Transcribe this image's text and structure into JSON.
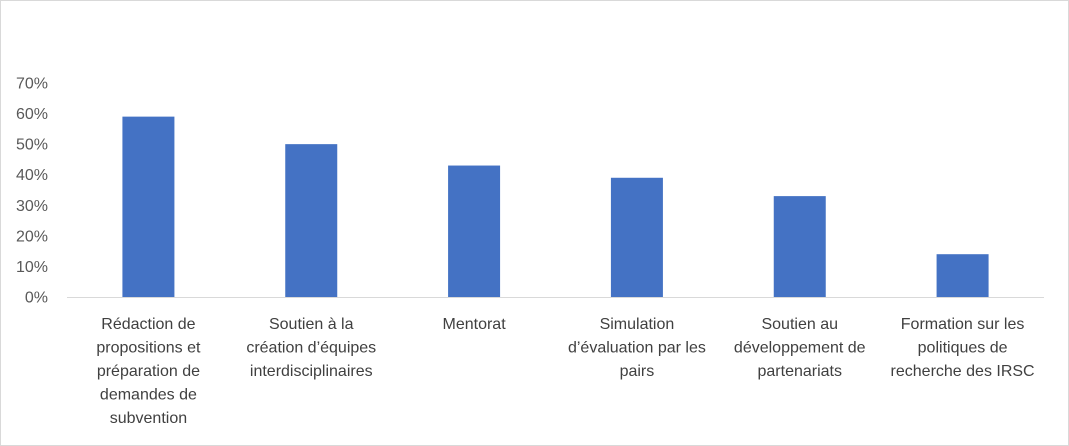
{
  "chart_data": {
    "type": "bar",
    "title": "",
    "xlabel": "",
    "ylabel": "",
    "ylim": [
      0,
      0.7
    ],
    "y_ticks": [
      "0%",
      "10%",
      "20%",
      "30%",
      "40%",
      "50%",
      "60%",
      "70%"
    ],
    "grid": false,
    "legend": "none",
    "bar_color": "#4472c4",
    "axis_color": "#d9d9d9",
    "categories": [
      [
        "Rédaction de",
        "propositions et",
        "préparation de",
        "demandes de",
        "subvention"
      ],
      [
        "Soutien à la",
        "création d’équipes",
        "interdisciplinaires"
      ],
      [
        "Mentorat"
      ],
      [
        "Simulation",
        "d’évaluation par les",
        "pairs"
      ],
      [
        "Soutien au",
        "développement de",
        "partenariats"
      ],
      [
        "Formation sur les",
        "politiques de",
        "recherche des IRSC"
      ]
    ],
    "values": [
      0.59,
      0.5,
      0.43,
      0.39,
      0.33,
      0.14
    ]
  }
}
